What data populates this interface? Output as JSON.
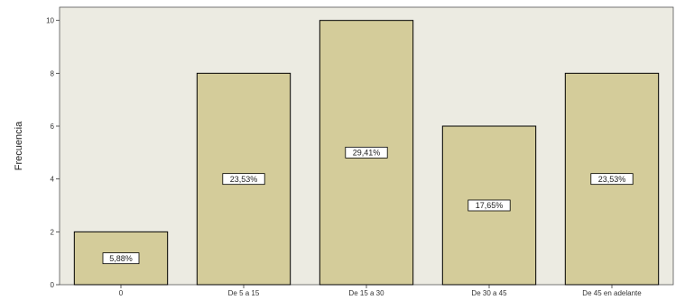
{
  "chart_data": {
    "type": "bar",
    "title": "",
    "xlabel": "",
    "ylabel": "Frecuencia",
    "categories": [
      "0",
      "De 5 a 15",
      "De 15 a 30",
      "De 30 a 45",
      "De 45 en adelante"
    ],
    "values": [
      2,
      8,
      10,
      6,
      8
    ],
    "data_labels": [
      "5,88%",
      "23,53%",
      "29,41%",
      "17,65%",
      "23,53%"
    ],
    "ylim": [
      0,
      10.5
    ],
    "yticks": [
      0,
      2,
      4,
      6,
      8,
      10
    ],
    "ytick_labels": [
      "0",
      "2",
      "4",
      "6",
      "8",
      "10"
    ],
    "grid": false,
    "legend": "none",
    "colors": {
      "plot_background": "#ecebe2",
      "bar_fill": "#d4cc9a",
      "bar_stroke": "#000000",
      "label_box": "#ffffff"
    }
  }
}
